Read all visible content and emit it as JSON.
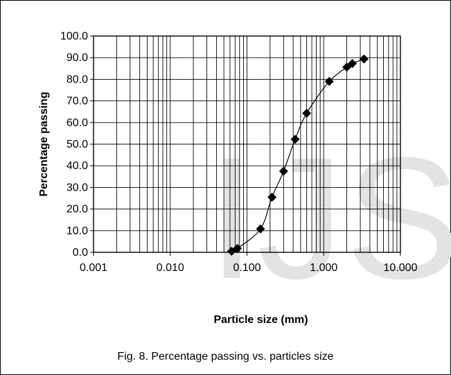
{
  "watermark": "IJS",
  "caption": "Fig. 8. Percentage passing vs. particles size",
  "chart_data": {
    "type": "scatter",
    "title": "",
    "xlabel": "Particle size (mm)",
    "ylabel": "Percentage passing",
    "x_scale": "log",
    "xlim": [
      0.001,
      10
    ],
    "ylim": [
      0,
      100
    ],
    "grid": true,
    "legend": "none",
    "x_ticks": [
      0.001,
      0.01,
      0.1,
      1,
      10
    ],
    "x_tick_labels": [
      "0.001",
      "0.010",
      "0.100",
      "1.000",
      "10.000"
    ],
    "y_ticks": [
      0,
      10,
      20,
      30,
      40,
      50,
      60,
      70,
      80,
      90,
      100
    ],
    "y_tick_labels": [
      "0.0",
      "10.0",
      "20.0",
      "30.0",
      "40.0",
      "50.0",
      "60.0",
      "70.0",
      "80.0",
      "90.0",
      "100.0"
    ],
    "series": [
      {
        "marker": "diamond",
        "color": "#000000",
        "line": "smooth",
        "x": [
          0.063,
          0.075,
          0.15,
          0.212,
          0.3,
          0.425,
          0.6,
          1.18,
          2.0,
          2.36,
          3.35
        ],
        "y": [
          0.5,
          1.8,
          10.8,
          25.5,
          37.5,
          52.3,
          64.3,
          79.0,
          85.6,
          87.3,
          89.4
        ]
      }
    ]
  }
}
